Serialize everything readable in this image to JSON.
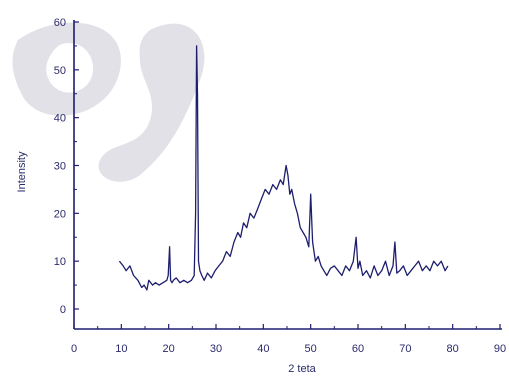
{
  "chart_data": {
    "type": "line",
    "title": "",
    "xlabel": "2 teta",
    "ylabel": "Intensity",
    "xlim": [
      0,
      90
    ],
    "ylim": [
      -5,
      60
    ],
    "x_ticks": [
      0,
      10,
      20,
      30,
      40,
      50,
      60,
      70,
      80,
      90
    ],
    "y_ticks": [
      0,
      10,
      20,
      30,
      40,
      50,
      60
    ],
    "grid": false,
    "colors": {
      "line": "#1e1e6e",
      "axis": "#1e1e6e",
      "watermark": "#c9c9d4"
    },
    "series": [
      {
        "x": [
          9.6,
          10.4,
          11.0,
          11.8,
          12.6,
          13.5,
          14.3,
          14.8,
          15.4,
          15.8,
          16.6,
          17.2,
          18.0,
          18.8,
          19.6,
          19.9,
          20.2,
          20.4,
          20.7,
          21.0,
          21.6,
          22.4,
          23.2,
          24.0,
          24.8,
          25.4,
          25.7,
          25.9,
          26.1,
          26.3,
          26.6,
          27.0,
          27.5,
          28.2,
          29.0,
          29.8,
          30.6,
          31.4,
          32.2,
          33.0,
          33.8,
          34.6,
          35.2,
          35.8,
          36.5,
          37.2,
          38.0,
          38.8,
          39.6,
          40.4,
          41.2,
          42.0,
          42.8,
          43.6,
          44.2,
          44.8,
          45.2,
          45.6,
          46.0,
          46.6,
          47.2,
          47.8,
          48.4,
          49.0,
          49.6,
          50.0,
          50.4,
          51.0,
          51.6,
          52.2,
          52.8,
          53.4,
          54.2,
          55.0,
          55.8,
          56.6,
          57.4,
          58.2,
          59.0,
          59.6,
          60.0,
          60.4,
          61.0,
          61.8,
          62.6,
          63.4,
          64.2,
          65.0,
          65.8,
          66.6,
          67.4,
          67.8,
          68.2,
          68.8,
          69.6,
          70.4,
          71.2,
          72.0,
          72.8,
          73.6,
          74.4,
          75.2,
          76.0,
          76.8,
          77.6,
          78.4,
          79.0
        ],
        "y": [
          10,
          9,
          8,
          9,
          7,
          6,
          4.5,
          5,
          4,
          6,
          5,
          5.5,
          5,
          5.5,
          6,
          7,
          13,
          6,
          5.5,
          6,
          6.5,
          5.5,
          6,
          5.5,
          6,
          7,
          20,
          55,
          45,
          10,
          8,
          7,
          6,
          7.5,
          6.5,
          8,
          9,
          10,
          12,
          11,
          14,
          16,
          15,
          18,
          17,
          20,
          19,
          21,
          23,
          25,
          24,
          26,
          25,
          27,
          26,
          30,
          28,
          24,
          25,
          22,
          20,
          17,
          16,
          15,
          13,
          24,
          14,
          10,
          11,
          9,
          8,
          7,
          8.5,
          9,
          8,
          7,
          9,
          8,
          10,
          15,
          8.5,
          10,
          7,
          8,
          6.5,
          9,
          7,
          8,
          10,
          7,
          9,
          14,
          7.5,
          8,
          9,
          7,
          8,
          9,
          10,
          8,
          9,
          8,
          10,
          9,
          10,
          8,
          9
        ]
      }
    ]
  }
}
